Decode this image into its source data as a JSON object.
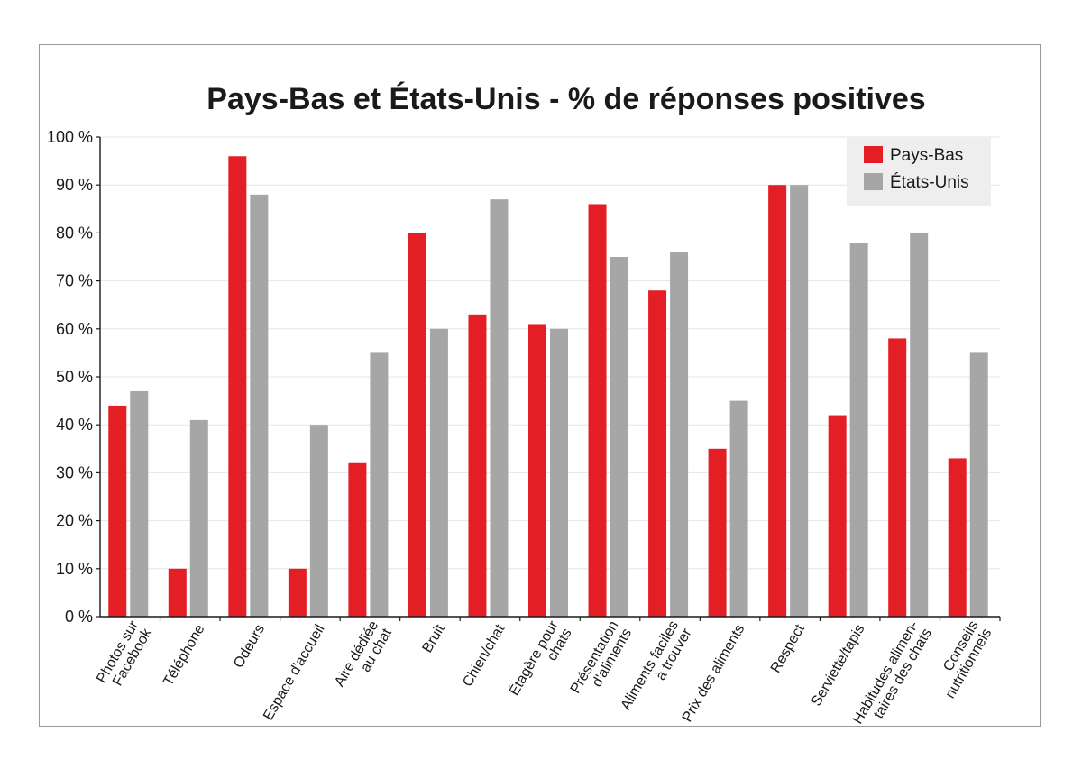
{
  "chart_data": {
    "type": "bar",
    "title": "Pays-Bas et États-Unis - % de réponses positives",
    "xlabel": "",
    "ylabel": "",
    "ylim": [
      0,
      100
    ],
    "yticks": [
      {
        "value": 0,
        "label": "0 %"
      },
      {
        "value": 10,
        "label": "10 %"
      },
      {
        "value": 20,
        "label": "20 %"
      },
      {
        "value": 30,
        "label": "30 %"
      },
      {
        "value": 40,
        "label": "40 %"
      },
      {
        "value": 50,
        "label": "50 %"
      },
      {
        "value": 60,
        "label": "60 %"
      },
      {
        "value": 70,
        "label": "70 %"
      },
      {
        "value": 80,
        "label": "80 %"
      },
      {
        "value": 90,
        "label": "90 %"
      },
      {
        "value": 100,
        "label": "100 %"
      }
    ],
    "grid": true,
    "legend_position": "top-right",
    "categories": [
      [
        "Photos sur",
        "Facebook"
      ],
      [
        "Téléphone"
      ],
      [
        "Odeurs"
      ],
      [
        "Espace d'accueil"
      ],
      [
        "Aire dédiée",
        "au chat"
      ],
      [
        "Bruit"
      ],
      [
        "Chien/chat"
      ],
      [
        "Étagère pour",
        "chats"
      ],
      [
        "Présentation",
        "d'aliments"
      ],
      [
        "Aliments faciles",
        "à trouver"
      ],
      [
        "Prix des aliments"
      ],
      [
        "Respect"
      ],
      [
        "Serviette/tapis"
      ],
      [
        "Habitudes alimen-",
        "taires des chats"
      ],
      [
        "Conseils",
        "nutritionnels"
      ]
    ],
    "series": [
      {
        "name": "Pays-Bas",
        "color": "#e31e24",
        "values": [
          44,
          10,
          96,
          10,
          32,
          80,
          63,
          61,
          86,
          68,
          35,
          90,
          42,
          58,
          33
        ]
      },
      {
        "name": "États-Unis",
        "color": "#a6a6a6",
        "values": [
          47,
          41,
          88,
          40,
          55,
          60,
          87,
          60,
          75,
          76,
          45,
          90,
          78,
          80,
          55
        ]
      }
    ]
  }
}
